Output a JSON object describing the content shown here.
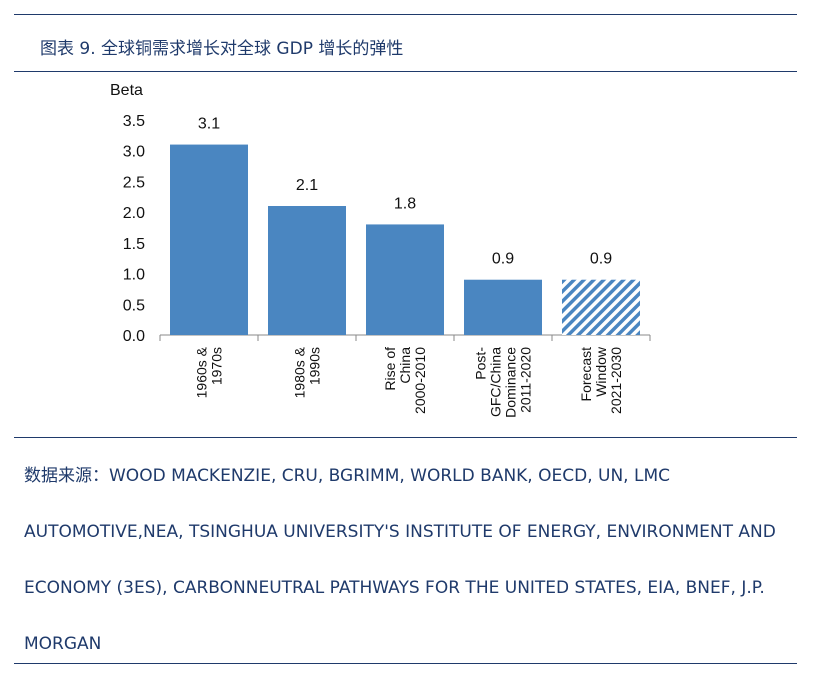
{
  "figure": {
    "title": "图表 9.  全球铜需求增长对全球 GDP 增长的弹性"
  },
  "chart_data": {
    "type": "bar",
    "title": "",
    "ylabel": "Beta",
    "ylim": [
      0,
      3.5
    ],
    "yticks": [
      "0.0",
      "0.5",
      "1.0",
      "1.5",
      "2.0",
      "2.5",
      "3.0",
      "3.5"
    ],
    "categories": [
      [
        "1960s &",
        "1970s"
      ],
      [
        "1980s &",
        "1990s"
      ],
      [
        "Rise of",
        "China",
        "2000-2010"
      ],
      [
        "Post-",
        "GFC/China",
        "Dominance",
        "2011-2020"
      ],
      [
        "Forecast",
        "Window",
        "2021-2030"
      ]
    ],
    "values": [
      3.1,
      2.1,
      1.8,
      0.9,
      0.9
    ],
    "value_labels": [
      "3.1",
      "2.1",
      "1.8",
      "0.9",
      "0.9"
    ],
    "bar_color": "#4a86c1",
    "forecast_index": 4,
    "grid": false,
    "legend": "none"
  },
  "source": {
    "text": "数据来源：WOOD MACKENZIE, CRU, BGRIMM, WORLD BANK, OECD, UN, LMC AUTOMOTIVE,NEA, TSINGHUA UNIVERSITY'S INSTITUTE OF ENERGY, ENVIRONMENT AND ECONOMY (3ES), CARBONNEUTRAL PATHWAYS FOR THE UNITED STATES, EIA, BNEF, J.P. MORGAN"
  }
}
